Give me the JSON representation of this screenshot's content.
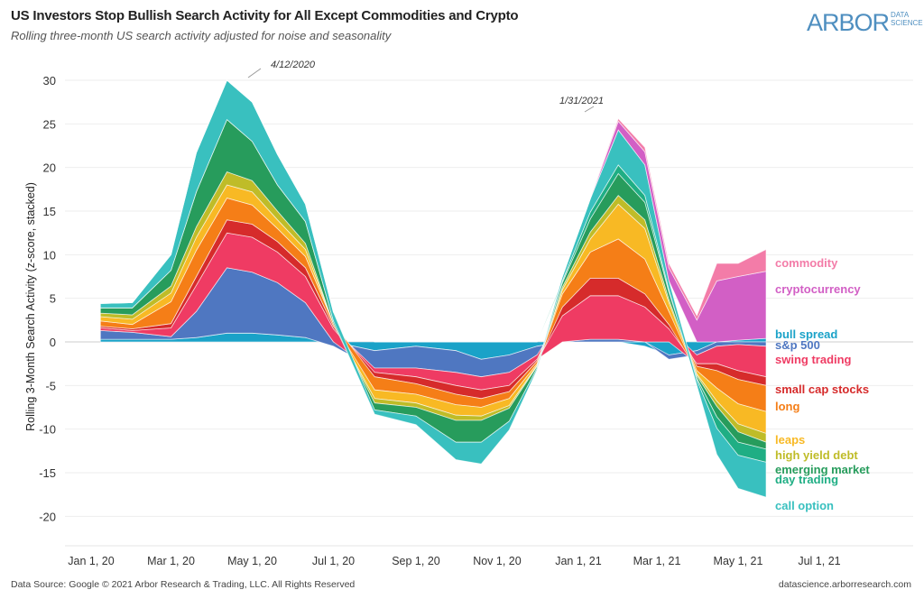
{
  "header": {
    "title": "US Investors Stop Bullish Search Activity for All Except Commodities and Crypto",
    "subtitle": "Rolling three-month US search activity adjusted for noise and seasonality",
    "logo_text": "ARBOR",
    "logo_sub1": "DATA",
    "logo_sub2": "SCIENCE"
  },
  "footer": {
    "left": "Data Source: Google © 2021 Arbor Research & Trading, LLC. All Rights Reserved",
    "right": "datascience.arborresearch.com"
  },
  "chart_data": {
    "type": "area",
    "stacked": true,
    "ylabel": "Rolling 3-Month Search Activity (z-score, stacked)",
    "ylim": [
      -22,
      32
    ],
    "yticks": [
      30,
      25,
      20,
      15,
      10,
      5,
      0,
      -5,
      -10,
      -15,
      -20
    ],
    "xlim": [
      "2019-12-20",
      "2021-07-25"
    ],
    "xticks": [
      {
        "date": "2020-01-01",
        "label": "Jan 1, 20"
      },
      {
        "date": "2020-03-01",
        "label": "Mar 1, 20"
      },
      {
        "date": "2020-05-01",
        "label": "May 1, 20"
      },
      {
        "date": "2020-07-01",
        "label": "Jul 1, 20"
      },
      {
        "date": "2020-09-01",
        "label": "Sep 1, 20"
      },
      {
        "date": "2020-11-01",
        "label": "Nov 1, 20"
      },
      {
        "date": "2021-01-01",
        "label": "Jan 1, 21"
      },
      {
        "date": "2021-03-01",
        "label": "Mar 1, 21"
      },
      {
        "date": "2021-05-01",
        "label": "May 1, 21"
      },
      {
        "date": "2021-07-01",
        "label": "Jul 1, 21"
      }
    ],
    "grid": true,
    "annotations": [
      {
        "date": "2020-04-12",
        "value": 30.5,
        "label": "4/12/2020"
      },
      {
        "date": "2021-01-31",
        "value": 25.8,
        "label": "1/31/2021"
      }
    ],
    "x": [
      "2020-01-08",
      "2020-02-01",
      "2020-03-01",
      "2020-03-20",
      "2020-04-12",
      "2020-05-01",
      "2020-05-20",
      "2020-06-10",
      "2020-07-01",
      "2020-08-01",
      "2020-09-01",
      "2020-10-01",
      "2020-10-20",
      "2020-11-10",
      "2020-12-01",
      "2020-12-20",
      "2021-01-10",
      "2021-01-31",
      "2021-02-20",
      "2021-03-10",
      "2021-03-31",
      "2021-04-15",
      "2021-05-01",
      "2021-05-22"
    ],
    "series": [
      {
        "name": "bull spread",
        "color": "#1aa2c8",
        "values": [
          0.3,
          0.3,
          0.3,
          0.5,
          1,
          1,
          0.8,
          0.5,
          0,
          -1,
          -0.5,
          -1,
          -2,
          -1.5,
          -0.5,
          0,
          0,
          0,
          -0.5,
          -1.5,
          -1,
          0,
          0.2,
          0.4
        ]
      },
      {
        "name": "s&p 500",
        "color": "#4f77c1",
        "values": [
          1,
          0.8,
          0.3,
          3,
          7.5,
          7,
          6,
          4,
          -0.5,
          -2,
          -2.5,
          -2.5,
          -2,
          -2,
          -1,
          0,
          0.3,
          0.3,
          0,
          -0.5,
          -0.5,
          -0.5,
          -0.3,
          -0.5
        ]
      },
      {
        "name": "swing trading",
        "color": "#ef3b63",
        "values": [
          0.3,
          0.2,
          1,
          3,
          4,
          4,
          3.5,
          3,
          1.5,
          -0.5,
          -1,
          -1.5,
          -1.5,
          -1.5,
          -0.5,
          3,
          5,
          5,
          4,
          1.5,
          -1,
          -2,
          -3,
          -3.5
        ]
      },
      {
        "name": "small cap stocks",
        "color": "#d62b2b",
        "values": [
          0.2,
          0.2,
          0.5,
          1,
          1.5,
          1.5,
          1.2,
          1,
          0.3,
          -0.5,
          -0.8,
          -1,
          -1,
          -0.7,
          -0.2,
          1,
          2,
          2,
          1.5,
          0.5,
          -0.3,
          -0.8,
          -1,
          -1
        ]
      },
      {
        "name": "long",
        "color": "#f57e17",
        "values": [
          0.6,
          0.5,
          2.5,
          3,
          2.5,
          2.2,
          1.5,
          1.3,
          0.3,
          -1.5,
          -1.2,
          -1.2,
          -1,
          -0.8,
          -0.3,
          1.5,
          3,
          4.5,
          4,
          1.5,
          -0.5,
          -2,
          -2.8,
          -3
        ]
      },
      {
        "name": "leaps",
        "color": "#f8b924",
        "values": [
          0.5,
          0.6,
          1,
          1.5,
          1.5,
          1.5,
          1,
          0.8,
          0,
          -1,
          -1,
          -1.2,
          -1,
          -0.8,
          -0.2,
          0.5,
          1.5,
          4,
          3.5,
          1,
          -0.4,
          -1.5,
          -2.3,
          -2.5
        ]
      },
      {
        "name": "high yield debt",
        "color": "#bfbc28",
        "values": [
          0.4,
          0.5,
          0.8,
          1.2,
          1.5,
          1.3,
          1,
          0.7,
          0,
          -0.5,
          -0.5,
          -0.6,
          -0.5,
          -0.3,
          -0.1,
          0.3,
          0.8,
          1,
          1,
          0.4,
          -0.2,
          -0.6,
          -0.9,
          -1
        ]
      },
      {
        "name": "emerging market",
        "color": "#279c5c",
        "values": [
          0.6,
          0.8,
          1.8,
          4,
          6,
          4.5,
          3,
          2.5,
          0.3,
          -0.8,
          -1,
          -2.5,
          -2.5,
          -1.5,
          -0.2,
          0.5,
          1.5,
          2.5,
          2,
          0.8,
          -0.3,
          -1.2,
          -1.2,
          -0.8
        ]
      },
      {
        "name": "day trading",
        "color": "#1fae84",
        "values": [
          0,
          0,
          0,
          0,
          0,
          0,
          0,
          0,
          0,
          0,
          0,
          0,
          0,
          0,
          0,
          0.2,
          0.8,
          1,
          0.8,
          0.3,
          -0.2,
          -1.3,
          -1.5,
          -1.5
        ]
      },
      {
        "name": "call option",
        "color": "#39c0bf",
        "values": [
          0.5,
          0.6,
          1.8,
          4.5,
          4.5,
          4.5,
          3.5,
          2,
          1,
          -0.5,
          -1,
          -2,
          -2.5,
          -1,
          -0.2,
          0.5,
          1.5,
          4,
          3.5,
          1,
          -0.6,
          -3,
          -3.8,
          -4
        ]
      },
      {
        "name": "cryptocurrency",
        "color": "#d25fc5",
        "values": [
          0,
          0,
          0,
          0,
          0,
          0,
          0,
          0,
          0,
          0,
          0,
          0,
          0,
          0,
          0,
          0,
          0,
          1,
          1.5,
          1.5,
          2.5,
          7,
          7.3,
          7.7
        ]
      },
      {
        "name": "commodity",
        "color": "#f37ca8",
        "values": [
          0,
          0,
          0,
          0,
          0,
          0,
          0,
          0,
          0,
          0,
          0,
          0,
          0,
          0,
          0,
          0,
          0,
          0.3,
          0.5,
          0.5,
          0.5,
          2,
          1.5,
          2.5
        ]
      }
    ],
    "legend_order": [
      "commodity",
      "cryptocurrency",
      "bull spread",
      "s&p 500",
      "swing trading",
      "small cap stocks",
      "long",
      "leaps",
      "high yield debt",
      "emerging market",
      "day trading",
      "call option"
    ]
  }
}
